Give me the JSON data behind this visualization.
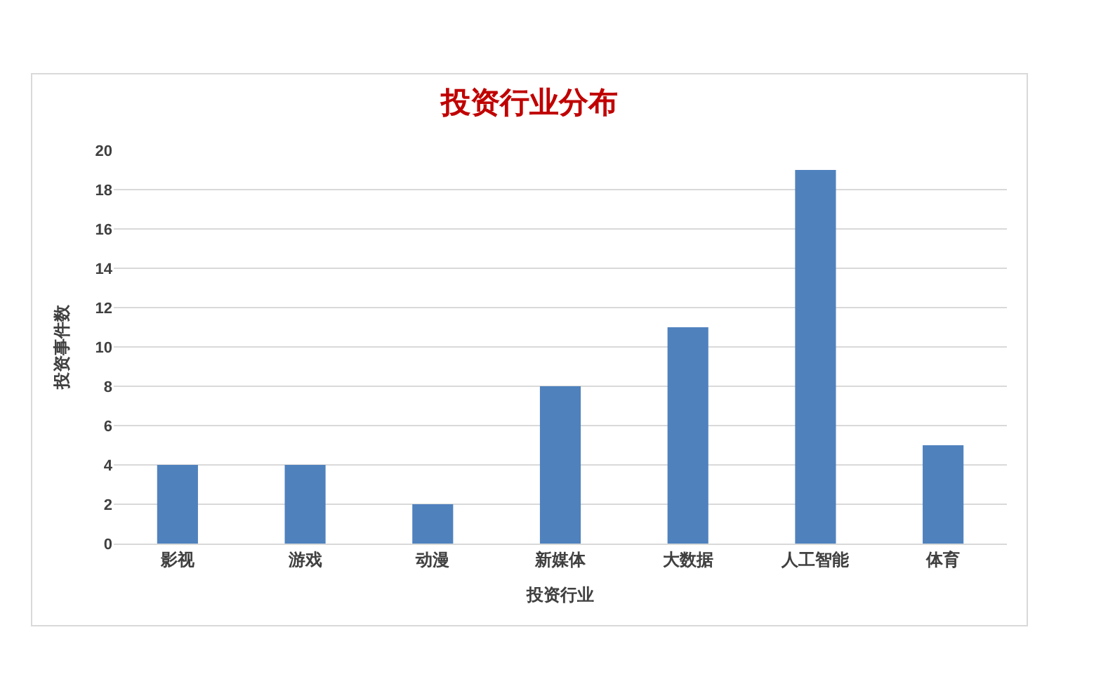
{
  "chart_data": {
    "type": "bar",
    "title": "投资行业分布",
    "xlabel": "投资行业",
    "ylabel": "投资事件数",
    "categories": [
      "影视",
      "游戏",
      "动漫",
      "新媒体",
      "大数据",
      "人工智能",
      "体育"
    ],
    "values": [
      4,
      4,
      2,
      8,
      11,
      19,
      5
    ],
    "color": "#4f81bd",
    "ylim": [
      0,
      20
    ],
    "yticks": [
      0,
      2,
      4,
      6,
      8,
      10,
      12,
      14,
      16,
      18,
      20
    ],
    "grid": "y",
    "legend": false
  }
}
